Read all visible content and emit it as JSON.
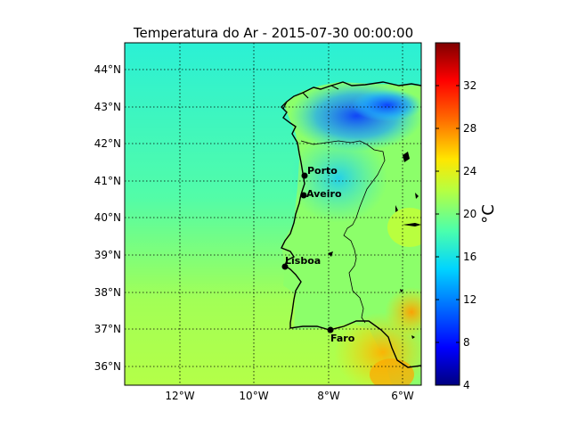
{
  "map": {
    "title": "Temperatura do Ar - 2015-07-30 00:00:00",
    "lon_labels": [
      "12°W",
      "10°W",
      "8°W",
      "6°W"
    ],
    "lat_labels": [
      "44°N",
      "43°N",
      "42°N",
      "41°N",
      "40°N",
      "39°N",
      "38°N",
      "37°N",
      "36°N"
    ],
    "extent": {
      "lon": [
        -13.5,
        -5.5
      ],
      "lat": [
        35.5,
        44.75
      ]
    },
    "grid": true,
    "cities": [
      {
        "name": "Porto",
        "lon": -8.6,
        "lat": 41.15
      },
      {
        "name": "Aveiro",
        "lon": -8.65,
        "lat": 40.64
      },
      {
        "name": "Lisboa",
        "lon": -9.14,
        "lat": 38.72
      },
      {
        "name": "Faro",
        "lon": -7.93,
        "lat": 37.02
      }
    ]
  },
  "colorbar": {
    "unit_label": "°C",
    "ticks": [
      "32",
      "28",
      "24",
      "20",
      "16",
      "12",
      "8",
      "4"
    ],
    "colormap": "jet",
    "colors": [
      "#00007f",
      "#0000ff",
      "#007fff",
      "#00ffff",
      "#7fff7f",
      "#ffff00",
      "#ff7f00",
      "#ff0000",
      "#7f0000"
    ]
  },
  "colors": {
    "ocean_field": "#3af5c4",
    "land_field": "#9bff5a",
    "coast": "#000000"
  }
}
